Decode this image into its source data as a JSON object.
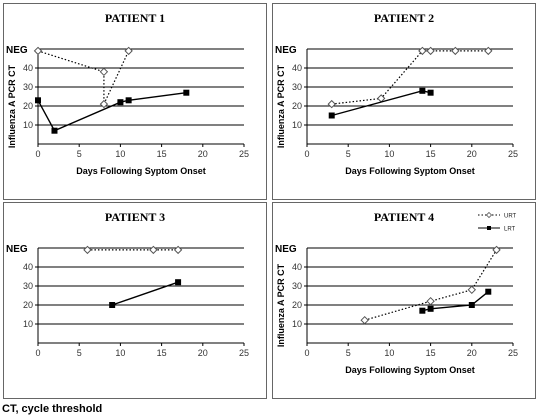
{
  "footnote": "CT, cycle threshold",
  "chart_data": [
    {
      "type": "line",
      "title": "PATIENT 1",
      "xlabel": "Days Following Syptom Onset",
      "ylabel": "Influenza A PCR CT",
      "xlim": [
        0,
        25
      ],
      "ylim": [
        0,
        50
      ],
      "x_ticks": [
        0,
        5,
        10,
        15,
        20,
        25
      ],
      "y_ticks": [
        10,
        20,
        30,
        40
      ],
      "y_top_label": "NEG",
      "grid": true,
      "series": [
        {
          "name": "URT",
          "style": "dotted",
          "marker": "open-diamond",
          "points": [
            [
              0,
              49
            ],
            [
              8,
              38
            ],
            [
              8,
              21
            ],
            [
              11,
              49
            ]
          ]
        },
        {
          "name": "LRT",
          "style": "solid",
          "marker": "filled-square",
          "points": [
            [
              0,
              23
            ],
            [
              2,
              7
            ],
            [
              10,
              22
            ],
            [
              11,
              23
            ],
            [
              18,
              27
            ]
          ]
        }
      ]
    },
    {
      "type": "line",
      "title": "PATIENT 2",
      "xlabel": "Days Following Syptom Onset",
      "ylabel": "Influenza A PCR CT",
      "xlim": [
        0,
        25
      ],
      "ylim": [
        0,
        50
      ],
      "x_ticks": [
        0,
        5,
        10,
        15,
        20,
        25
      ],
      "y_ticks": [
        10,
        20,
        30,
        40
      ],
      "y_top_label": "NEG",
      "grid": true,
      "series": [
        {
          "name": "URT",
          "style": "dotted",
          "marker": "open-diamond",
          "points": [
            [
              3,
              21
            ],
            [
              9,
              24
            ],
            [
              14,
              49
            ],
            [
              15,
              49
            ],
            [
              18,
              49
            ],
            [
              22,
              49
            ]
          ]
        },
        {
          "name": "LRT",
          "style": "solid",
          "marker": "filled-square",
          "points": [
            [
              3,
              15
            ],
            [
              14,
              28
            ],
            [
              15,
              27
            ]
          ]
        }
      ]
    },
    {
      "type": "line",
      "title": "PATIENT 3",
      "xlabel": "",
      "ylabel": "",
      "xlim": [
        0,
        25
      ],
      "ylim": [
        0,
        50
      ],
      "x_ticks": [
        0,
        5,
        10,
        15,
        20,
        25
      ],
      "y_ticks": [
        10,
        20,
        30,
        40
      ],
      "y_top_label": "NEG",
      "grid": true,
      "series": [
        {
          "name": "URT",
          "style": "dotted",
          "marker": "open-diamond",
          "points": [
            [
              6,
              49
            ],
            [
              14,
              49
            ],
            [
              17,
              49
            ]
          ]
        },
        {
          "name": "LRT",
          "style": "solid",
          "marker": "filled-square",
          "points": [
            [
              9,
              20
            ],
            [
              17,
              32
            ]
          ]
        }
      ]
    },
    {
      "type": "line",
      "title": "PATIENT 4",
      "xlabel": "Days Following Syptom Onset",
      "ylabel": "Influenza A PCR CT",
      "xlim": [
        0,
        25
      ],
      "ylim": [
        0,
        50
      ],
      "x_ticks": [
        0,
        5,
        10,
        15,
        20,
        25
      ],
      "y_ticks": [
        10,
        20,
        30,
        40
      ],
      "y_top_label": "NEG",
      "grid": true,
      "legend": {
        "position": "top-right",
        "entries": [
          "URT",
          "LRT"
        ]
      },
      "series": [
        {
          "name": "URT",
          "style": "dotted",
          "marker": "open-diamond",
          "points": [
            [
              7,
              12
            ],
            [
              15,
              22
            ],
            [
              20,
              28
            ],
            [
              23,
              49
            ]
          ]
        },
        {
          "name": "LRT",
          "style": "solid",
          "marker": "filled-square",
          "points": [
            [
              14,
              17
            ],
            [
              15,
              18
            ],
            [
              20,
              20
            ],
            [
              22,
              27
            ]
          ]
        }
      ]
    }
  ]
}
